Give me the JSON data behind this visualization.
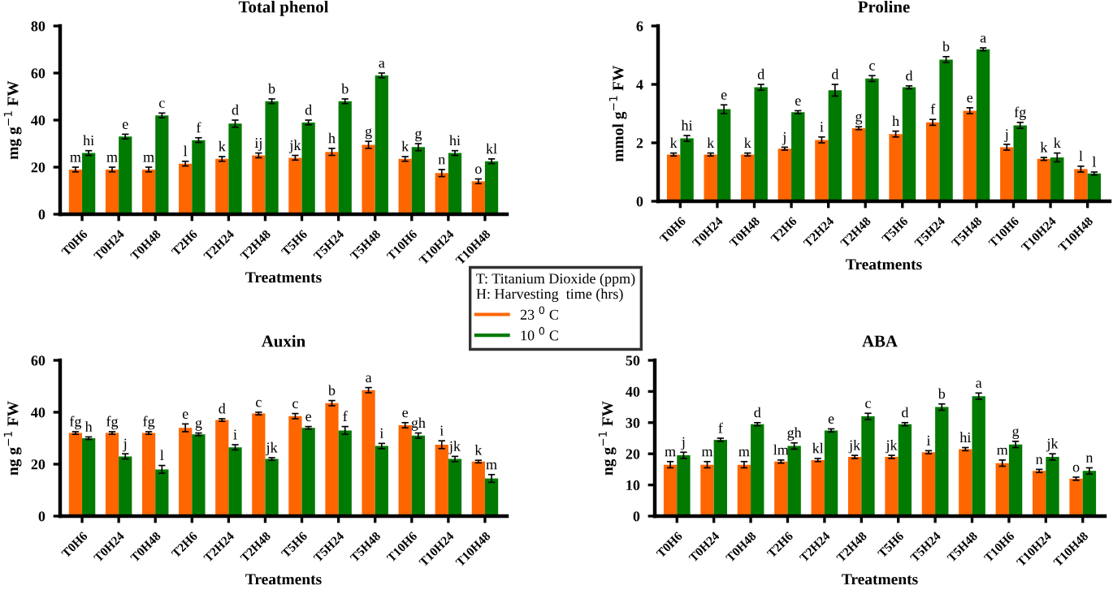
{
  "chart_data": [
    {
      "type": "bar",
      "title": "Total phenol",
      "xlabel": "Treatments",
      "ylabel": "mg g$^{−1}$ FW",
      "categories": [
        "T0H6",
        "T0H24",
        "T0H48",
        "T2H6",
        "T2H24",
        "T2H48",
        "T5H6",
        "T5H24",
        "T5H48",
        "T10H6",
        "T10H24",
        "T10H48"
      ],
      "ylim": [
        0,
        80
      ],
      "yticks": [
        0,
        20,
        40,
        60,
        80
      ],
      "legend": "center",
      "legend_title": "T: Titanium Dioxide (ppm)\nH: Harvesting  time (hrs)",
      "series": [
        {
          "name": "23 $^{0}$ C",
          "color": "#ff6600",
          "values": [
            19,
            19,
            19,
            21.5,
            23.5,
            25,
            24,
            26.5,
            29.5,
            23.5,
            17.5,
            14
          ],
          "errors": [
            1,
            1,
            1,
            1,
            1,
            1,
            1,
            1.5,
            1.5,
            1,
            1.5,
            1
          ],
          "value_labels": [
            "m",
            "m",
            "m",
            "l",
            "k",
            "ij",
            "jk",
            "h",
            "g",
            "k",
            "n",
            "o"
          ]
        },
        {
          "name": "10 $^{0}$ C",
          "color": "#007a00",
          "values": [
            26,
            33,
            42,
            31.5,
            38.5,
            48,
            39,
            48,
            59,
            28.5,
            26,
            22.5
          ],
          "errors": [
            1,
            1,
            1,
            1,
            1.5,
            1,
            1,
            1,
            1,
            1.5,
            1,
            1
          ],
          "value_labels": [
            "hi",
            "e",
            "c",
            "f",
            "d",
            "b",
            "d",
            "b",
            "a",
            "g",
            "hi",
            "kl"
          ]
        }
      ]
    },
    {
      "type": "bar",
      "title": "Proline",
      "xlabel": "Treatments",
      "ylabel": "mmol g$^{−1}$ FW",
      "categories": [
        "T0H6",
        "T0H24",
        "T0H48",
        "T2H6",
        "T2H24",
        "T2H48",
        "T5H6",
        "T5H24",
        "T5H48",
        "T10H6",
        "T10H24",
        "T10H48"
      ],
      "ylim": [
        0,
        6
      ],
      "yticks": [
        0,
        2,
        4,
        6
      ],
      "series": [
        {
          "color": "#ff6600",
          "values": [
            1.6,
            1.6,
            1.6,
            1.8,
            2.1,
            2.5,
            2.3,
            2.7,
            3.1,
            1.85,
            1.45,
            1.1
          ],
          "errors": [
            0.05,
            0.05,
            0.05,
            0.05,
            0.1,
            0.05,
            0.1,
            0.1,
            0.1,
            0.1,
            0.05,
            0.1
          ],
          "value_labels": [
            "k",
            "k",
            "k",
            "j",
            "i",
            "g",
            "h",
            "f",
            "e",
            "j",
            "k",
            "l"
          ]
        },
        {
          "color": "#007a00",
          "values": [
            2.15,
            3.15,
            3.9,
            3.05,
            3.8,
            4.2,
            3.9,
            4.85,
            5.2,
            2.6,
            1.5,
            0.95
          ],
          "errors": [
            0.1,
            0.15,
            0.1,
            0.05,
            0.2,
            0.1,
            0.05,
            0.1,
            0.05,
            0.1,
            0.15,
            0.05
          ],
          "value_labels": [
            "hi",
            "e",
            "d",
            "e",
            "d",
            "c",
            "d",
            "b",
            "a",
            "fg",
            "k",
            "l"
          ]
        }
      ]
    },
    {
      "type": "bar",
      "title": "Auxin",
      "xlabel": "Treatments",
      "ylabel": "ng g$^{−1}$ FW",
      "categories": [
        "T0H6",
        "T0H24",
        "T0H48",
        "T2H6",
        "T2H24",
        "T2H48",
        "T5H6",
        "T5H24",
        "T5H48",
        "T10H6",
        "T10H24",
        "T10H48"
      ],
      "ylim": [
        0,
        60
      ],
      "yticks": [
        0,
        20,
        40,
        60
      ],
      "series": [
        {
          "color": "#ff6600",
          "values": [
            32,
            32,
            32,
            34,
            37,
            39.5,
            38.5,
            43.5,
            48.5,
            35,
            27.5,
            21
          ],
          "errors": [
            0.5,
            0.5,
            0.5,
            1.5,
            0.5,
            0.5,
            1,
            1,
            1,
            1,
            1.5,
            0.5
          ],
          "value_labels": [
            "fg",
            "fg",
            "fg",
            "e",
            "d",
            "c",
            "c",
            "b",
            "a",
            "e",
            "i",
            "k"
          ]
        },
        {
          "color": "#007a00",
          "values": [
            30,
            23,
            18,
            31.5,
            26.5,
            22,
            34,
            33,
            27,
            31,
            22,
            14.5
          ],
          "errors": [
            0.5,
            1,
            1.5,
            0.5,
            1,
            0.5,
            0.5,
            1.5,
            1,
            1,
            1,
            1.5
          ],
          "value_labels": [
            "h",
            "j",
            "l",
            "g",
            "i",
            "jk",
            "e",
            "f",
            "i",
            "gh",
            "jk",
            "m"
          ]
        }
      ]
    },
    {
      "type": "bar",
      "title": "ABA",
      "xlabel": "Treatments",
      "ylabel": "ng g$^{−1}$ FW",
      "categories": [
        "T0H6",
        "T0H24",
        "T0H48",
        "T2H6",
        "T2H24",
        "T2H48",
        "T5H6",
        "T5H24",
        "T5H48",
        "T10H6",
        "T10H24",
        "T10H48"
      ],
      "ylim": [
        0,
        50
      ],
      "yticks": [
        0,
        10,
        20,
        30,
        40,
        50
      ],
      "series": [
        {
          "color": "#ff6600",
          "values": [
            16.5,
            16.5,
            16.5,
            17.5,
            18,
            19,
            19,
            20.5,
            21.5,
            17,
            14.5,
            12
          ],
          "errors": [
            1,
            1,
            1,
            0.5,
            0.5,
            0.5,
            0.5,
            0.5,
            0.5,
            1,
            0.5,
            0.5
          ],
          "value_labels": [
            "m",
            "m",
            "m",
            "lm",
            "kl",
            "jk",
            "jk",
            "i",
            "hi",
            "m",
            "n",
            "o"
          ]
        },
        {
          "color": "#007a00",
          "values": [
            19.5,
            24.5,
            29.5,
            22.5,
            27.5,
            32,
            29.5,
            35,
            38.5,
            23,
            19,
            14.5
          ],
          "errors": [
            1,
            0.5,
            0.5,
            1,
            0.5,
            1,
            0.5,
            1,
            1,
            1,
            1,
            1
          ],
          "value_labels": [
            "j",
            "f",
            "d",
            "gh",
            "e",
            "c",
            "d",
            "b",
            "a",
            "g",
            "jk",
            "n"
          ]
        }
      ]
    }
  ]
}
